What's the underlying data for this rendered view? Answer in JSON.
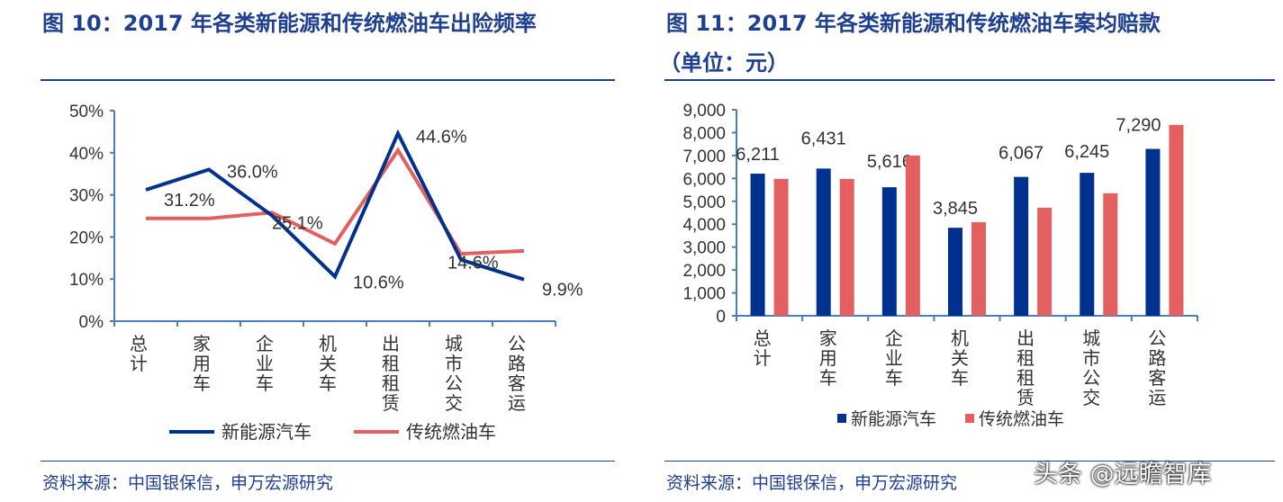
{
  "chart_data": [
    {
      "type": "line",
      "title": "图 10：2017 年各类新能源和传统燃油车出险频率",
      "categories": [
        "总计",
        "家用车",
        "企业车",
        "机关车",
        "出租租赁",
        "城市公交",
        "公路客运"
      ],
      "ylim": [
        0,
        50
      ],
      "yticks": [
        "0%",
        "10%",
        "20%",
        "30%",
        "40%",
        "50%"
      ],
      "series": [
        {
          "name": "新能源汽车",
          "color": "#00318f",
          "values": [
            31.2,
            36.0,
            25.1,
            10.6,
            44.6,
            14.6,
            9.9
          ],
          "labels": [
            "31.2%",
            "36.0%",
            "25.1%",
            "10.6%",
            "44.6%",
            "14.6%",
            "9.9%"
          ]
        },
        {
          "name": "传统燃油车",
          "color": "#e45f5f",
          "values": [
            24.4,
            24.4,
            25.8,
            18.4,
            40.6,
            16.0,
            16.7
          ]
        }
      ],
      "legend": "bottom",
      "grid": false
    },
    {
      "type": "bar",
      "title": "图 11：2017 年各类新能源和传统燃油车案均赔款（单位：元）",
      "categories": [
        "总计",
        "家用车",
        "企业车",
        "机关车",
        "出租租赁",
        "城市公交",
        "公路客运"
      ],
      "ylim": [
        0,
        9000
      ],
      "yticks": [
        "0",
        "1,000",
        "2,000",
        "3,000",
        "4,000",
        "5,000",
        "6,000",
        "7,000",
        "8,000",
        "9,000"
      ],
      "series": [
        {
          "name": "新能源汽车",
          "color": "#00318f",
          "values": [
            6211,
            6431,
            5616,
            3845,
            6067,
            6245,
            7290
          ],
          "labels": [
            "6,211",
            "6,431",
            "5,616",
            "3,845",
            "6,067",
            "6,245",
            "7,290"
          ]
        },
        {
          "name": "传统燃油车",
          "color": "#e45f5f",
          "values": [
            5980,
            5980,
            7000,
            4090,
            4720,
            5350,
            8340
          ]
        }
      ],
      "legend": "bottom",
      "grid": false
    }
  ],
  "titles": {
    "left": "图 10：2017 年各类新能源和传统燃油车出险频率",
    "right_line1": "图 11：2017 年各类新能源和传统燃油车案均赔款",
    "right_line2": "（单位：元）"
  },
  "source": {
    "left": "资料来源：中国银保信，申万宏源研究",
    "right": "资料来源：中国银保信，申万宏源研究"
  },
  "watermark": "头条 @远瞻智库"
}
